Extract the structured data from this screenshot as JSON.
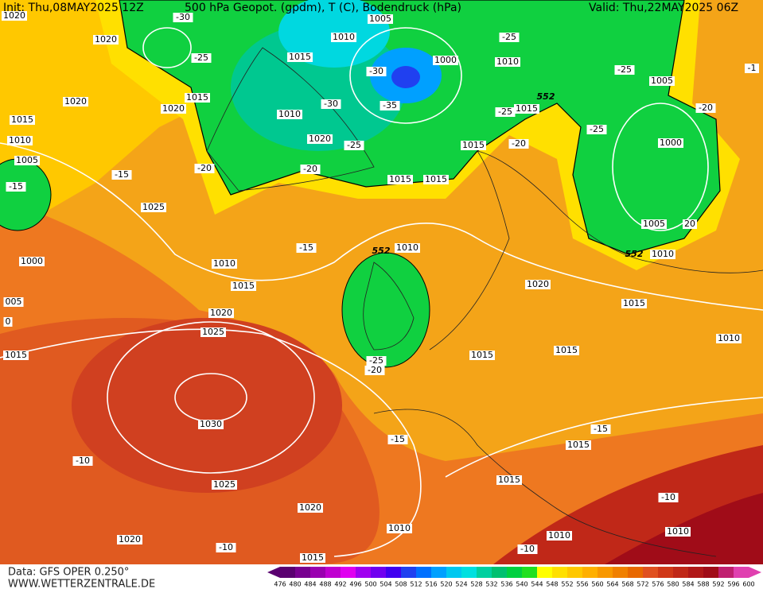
{
  "header": {
    "init": "Init: Thu,08MAY2025 12Z",
    "title": "500 hPa Geopot. (gpdm), T (C), Bodendruck (hPa)",
    "valid": "Valid: Thu,22MAY2025 06Z"
  },
  "footer": {
    "source": "Data: GFS OPER 0.250°",
    "website": "WWW.WETTERZENTRALE.DE"
  },
  "colorbar": {
    "labels": [
      476,
      480,
      484,
      488,
      492,
      496,
      500,
      504,
      508,
      512,
      516,
      520,
      524,
      528,
      532,
      536,
      540,
      544,
      548,
      552,
      556,
      560,
      564,
      568,
      572,
      576,
      580,
      584,
      588,
      592,
      596,
      600
    ],
    "colors": [
      "#5a0070",
      "#780090",
      "#9a00b0",
      "#c000d0",
      "#e000f0",
      "#a000f0",
      "#7000f0",
      "#4000f0",
      "#2040f0",
      "#0070ff",
      "#00a0ff",
      "#00c8f0",
      "#00e0e0",
      "#00d0a0",
      "#00c070",
      "#00d040",
      "#20e020",
      "#ffff00",
      "#ffe000",
      "#ffc800",
      "#ffb000",
      "#f89800",
      "#f08000",
      "#e86800",
      "#e05020",
      "#d03818",
      "#c02818",
      "#b01818",
      "#a00c18",
      "#c02070",
      "#e040b0"
    ]
  },
  "contour_labels": [
    "1020",
    "1020",
    "-30",
    "-25",
    "1005",
    "1010",
    "-25",
    "1015",
    "1000",
    "1010",
    "-30",
    "-35",
    "1015",
    "1020",
    "1020",
    "-30",
    "552",
    "1015",
    "-25",
    "1010",
    "-25",
    "1005",
    "-20",
    "-25",
    "1015",
    "1020",
    "-25",
    "1015",
    "-20",
    "1000",
    "1010",
    "1005",
    "-20",
    "-20",
    "-15",
    "-15",
    "1015",
    "1015",
    "1025",
    "1005",
    "20",
    "-15",
    "552",
    "1010",
    "552",
    "1010",
    "1000",
    "1010",
    "1015",
    "1020",
    "005",
    "1015",
    "1020",
    "0",
    "1025",
    "1010",
    "1015",
    "1015",
    "1015",
    "-25",
    "-20",
    "1030",
    "-15",
    "-15",
    "1015",
    "-10",
    "1015",
    "1025",
    "-10",
    "1020",
    "1010",
    "1010",
    "1010",
    "1020",
    "-10",
    "-10",
    "1015",
    "-1"
  ]
}
